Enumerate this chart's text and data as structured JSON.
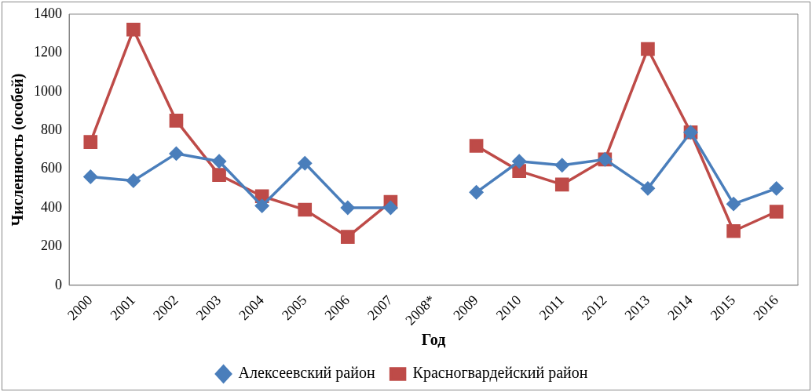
{
  "chart_data": {
    "type": "line",
    "xlabel": "Год",
    "ylabel": "Численность (особей)",
    "categories": [
      "2000",
      "2001",
      "2002",
      "2003",
      "2004",
      "2005",
      "2006",
      "2007",
      "2008*",
      "2009",
      "2010",
      "2011",
      "2012",
      "2013",
      "2014",
      "2015",
      "2016"
    ],
    "series": [
      {
        "name": "Алексеевский район",
        "color": "#4a7ebb",
        "marker": "diamond",
        "values": [
          560,
          540,
          680,
          640,
          410,
          630,
          400,
          400,
          null,
          480,
          640,
          620,
          650,
          500,
          790,
          420,
          500
        ]
      },
      {
        "name": "Красногвардейский район",
        "color": "#be4b48",
        "marker": "square",
        "values": [
          740,
          1320,
          850,
          570,
          460,
          390,
          250,
          430,
          null,
          720,
          590,
          520,
          650,
          1220,
          790,
          280,
          380
        ]
      }
    ],
    "ylim": [
      0,
      1400
    ],
    "yticks": [
      0,
      200,
      400,
      600,
      800,
      1000,
      1200,
      1400
    ],
    "grid": false,
    "legend": "bottom",
    "line_style": "solid"
  }
}
